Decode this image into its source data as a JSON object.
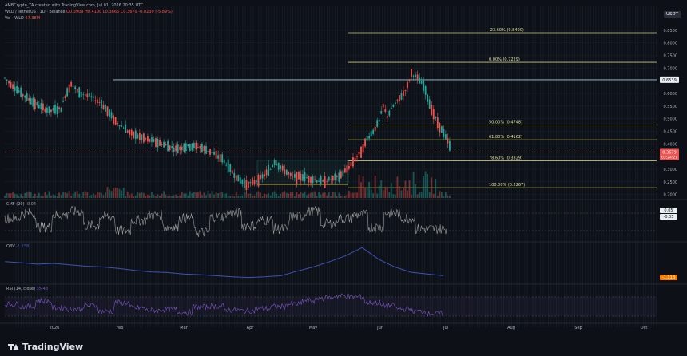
{
  "header": {
    "line1": "AMBCrypto_TA created with TradingView.com, Jul 01, 2026 20:35 UTC",
    "line2": "WLD / TetherUS · 1D · Binance",
    "line2_ohlc": "O0.3909 H0.4100 L0.3665 C0.3679 -0.0230 (-5.89%)",
    "line3": "Vol · WLD",
    "line3_val": "67.38M"
  },
  "quote_currency": "USDT",
  "current_price_tag": "0.3679",
  "current_countdown": "03:24:21",
  "level_tag_0659": "0.6539",
  "indicators": {
    "cmf_label": "CMF (20)",
    "cmf_value": "-0.04",
    "cmf_tag_top": "0.05",
    "cmf_tag_bottom": "-0.05",
    "obv_label": "OBV",
    "obv_value": "-1.15B",
    "obv_tag": "-1.11B",
    "rsi_label": "RSI (14, close)",
    "rsi_value": "35.48"
  },
  "brand": "TradingView",
  "colors": {
    "bg": "#0d1117",
    "up": "#26a69a",
    "down": "#ef5350",
    "fib": "#c8c87a",
    "cmf": "#9e9e9e",
    "obv": "#3f51b5",
    "rsi": "#7e57c2"
  },
  "chart_data": {
    "type": "candlestick",
    "symbol": "WLD / TetherUS",
    "timeframe": "1D",
    "exchange": "Binance",
    "x_tick_labels": [
      "2026",
      "Feb",
      "Mar",
      "Apr",
      "May",
      "Jun",
      "Jul",
      "Aug",
      "Sep",
      "Oct"
    ],
    "y_tick_labels": [
      "0.8500",
      "0.8000",
      "0.7500",
      "0.7000",
      "0.6500",
      "0.6000",
      "0.5500",
      "0.5000",
      "0.4500",
      "0.4000",
      "0.3500",
      "0.3000",
      "0.2500",
      "0.2000"
    ],
    "fib_levels": [
      {
        "label": "-23.60% (0.8400)",
        "price": 0.84
      },
      {
        "label": "0.00% (0.7229)",
        "price": 0.7229
      },
      {
        "label": "50.00% (0.4748)",
        "price": 0.4748
      },
      {
        "label": "61.80% (0.4162)",
        "price": 0.4162
      },
      {
        "label": "78.60% (0.3329)",
        "price": 0.3329
      },
      {
        "label": "100.00% (0.2267)",
        "price": 0.2267
      }
    ],
    "horizontal_level": 0.6539,
    "price_path": [
      [
        0,
        0.66
      ],
      [
        8,
        0.6
      ],
      [
        15,
        0.56
      ],
      [
        22,
        0.53
      ],
      [
        28,
        0.54
      ],
      [
        30,
        0.59
      ],
      [
        33,
        0.64
      ],
      [
        37,
        0.6
      ],
      [
        42,
        0.59
      ],
      [
        48,
        0.56
      ],
      [
        52,
        0.52
      ],
      [
        55,
        0.49
      ],
      [
        58,
        0.47
      ],
      [
        63,
        0.44
      ],
      [
        70,
        0.42
      ],
      [
        78,
        0.4
      ],
      [
        85,
        0.38
      ],
      [
        90,
        0.39
      ],
      [
        96,
        0.39
      ],
      [
        102,
        0.37
      ],
      [
        108,
        0.34
      ],
      [
        112,
        0.3
      ],
      [
        116,
        0.26
      ],
      [
        120,
        0.24
      ],
      [
        124,
        0.25
      ],
      [
        128,
        0.27
      ],
      [
        132,
        0.3
      ],
      [
        134,
        0.33
      ],
      [
        138,
        0.3
      ],
      [
        143,
        0.27
      ],
      [
        148,
        0.27
      ],
      [
        153,
        0.26
      ],
      [
        158,
        0.25
      ],
      [
        162,
        0.26
      ],
      [
        166,
        0.27
      ],
      [
        170,
        0.3
      ],
      [
        174,
        0.34
      ],
      [
        177,
        0.37
      ],
      [
        180,
        0.42
      ],
      [
        183,
        0.45
      ],
      [
        186,
        0.49
      ],
      [
        188,
        0.55
      ],
      [
        190,
        0.51
      ],
      [
        193,
        0.55
      ],
      [
        196,
        0.58
      ],
      [
        198,
        0.6
      ],
      [
        200,
        0.63
      ],
      [
        202,
        0.68
      ],
      [
        205,
        0.66
      ],
      [
        208,
        0.63
      ],
      [
        211,
        0.56
      ],
      [
        214,
        0.5
      ],
      [
        216,
        0.47
      ],
      [
        218,
        0.44
      ],
      [
        220,
        0.41
      ],
      [
        222,
        0.37
      ]
    ],
    "cmf_series": [
      0.02,
      0.05,
      -0.03,
      0.04,
      0.06,
      -0.02,
      0.03,
      -0.05,
      0.01,
      0.04,
      -0.03,
      0.02,
      -0.06,
      0.03,
      0.05,
      -0.02,
      0.01,
      -0.04,
      0.03,
      0.06,
      -0.01,
      0.02,
      0.04,
      -0.03,
      0.05,
      0.02,
      -0.04,
      -0.04
    ],
    "obv_series": [
      0.55,
      0.52,
      0.48,
      0.5,
      0.46,
      0.42,
      0.4,
      0.36,
      0.3,
      0.26,
      0.24,
      0.2,
      0.18,
      0.15,
      0.12,
      0.1,
      0.12,
      0.15,
      0.28,
      0.4,
      0.55,
      0.72,
      0.95,
      0.62,
      0.4,
      0.25,
      0.2,
      0.15
    ],
    "rsi_series": [
      55,
      50,
      62,
      48,
      45,
      52,
      40,
      58,
      47,
      42,
      44,
      38,
      49,
      51,
      43,
      41,
      46,
      50,
      55,
      62,
      68,
      72,
      70,
      58,
      52,
      45,
      40,
      35
    ]
  }
}
